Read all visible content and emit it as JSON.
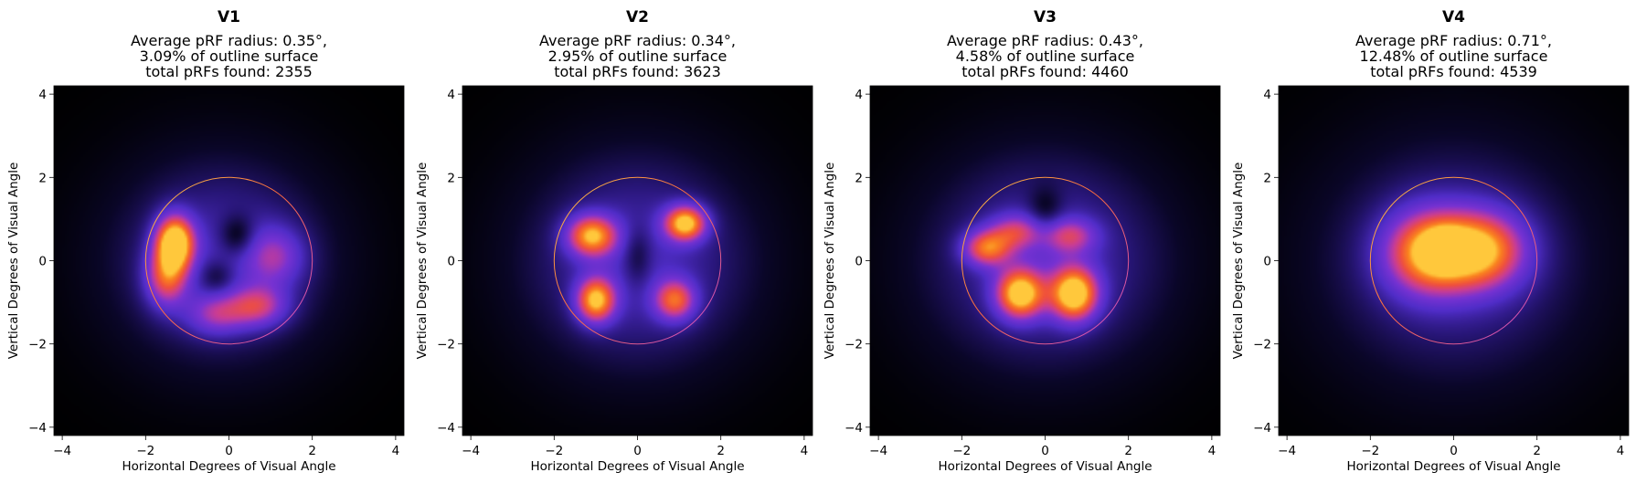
{
  "chart_data": [
    {
      "type": "heatmap",
      "title": "V1",
      "subtitle": [
        "Average pRF radius: 0.35°,",
        "3.09% of outline surface",
        "total pRFs found: 2355"
      ],
      "xlabel": "Horizontal Degrees of Visual Angle",
      "ylabel": "Vertical Degrees of Visual Angle",
      "xlim": [
        -4.2,
        4.2
      ],
      "ylim": [
        -4.2,
        4.2
      ],
      "xticks": [
        -4,
        -2,
        0,
        2,
        4
      ],
      "yticks": [
        -4,
        -2,
        0,
        2,
        4
      ],
      "outline_circle": {
        "cx": 0,
        "cy": 0,
        "r": 2
      },
      "average_prf_radius_deg": 0.35,
      "outline_surface_pct": 3.09,
      "total_prfs_found": 2355,
      "density_blobs": [
        {
          "x": -0.2,
          "y": 0.0,
          "sx": 1.8,
          "sy": 1.7,
          "w": 0.34
        },
        {
          "x": -1.3,
          "y": 0.45,
          "sx": 0.32,
          "sy": 0.45,
          "w": 0.95
        },
        {
          "x": -1.5,
          "y": -0.4,
          "sx": 0.35,
          "sy": 0.5,
          "w": 0.55
        },
        {
          "x": 0.7,
          "y": -1.1,
          "sx": 0.5,
          "sy": 0.35,
          "w": 0.45
        },
        {
          "x": 1.1,
          "y": 0.1,
          "sx": 0.5,
          "sy": 0.5,
          "w": 0.35
        },
        {
          "x": -0.3,
          "y": -1.3,
          "sx": 0.5,
          "sy": 0.35,
          "w": 0.35
        },
        {
          "x": 0.2,
          "y": 0.6,
          "sx": 0.3,
          "sy": 0.35,
          "w": -0.25
        },
        {
          "x": -0.3,
          "y": -0.4,
          "sx": 0.3,
          "sy": 0.3,
          "w": -0.2
        }
      ]
    },
    {
      "type": "heatmap",
      "title": "V2",
      "subtitle": [
        "Average pRF radius: 0.34°,",
        "2.95% of outline surface",
        "total pRFs found: 3623"
      ],
      "xlabel": "Horizontal Degrees of Visual Angle",
      "ylabel": "Vertical Degrees of Visual Angle",
      "xlim": [
        -4.2,
        4.2
      ],
      "ylim": [
        -4.2,
        4.2
      ],
      "xticks": [
        -4,
        -2,
        0,
        2,
        4
      ],
      "yticks": [
        -4,
        -2,
        0,
        2,
        4
      ],
      "outline_circle": {
        "cx": 0,
        "cy": 0,
        "r": 2
      },
      "average_prf_radius_deg": 0.34,
      "outline_surface_pct": 2.95,
      "total_prfs_found": 3623,
      "density_blobs": [
        {
          "x": 0.0,
          "y": 0.0,
          "sx": 1.9,
          "sy": 1.8,
          "w": 0.35
        },
        {
          "x": -1.1,
          "y": 0.6,
          "sx": 0.42,
          "sy": 0.35,
          "w": 0.75
        },
        {
          "x": 1.15,
          "y": 0.9,
          "sx": 0.35,
          "sy": 0.3,
          "w": 0.85
        },
        {
          "x": -1.0,
          "y": -0.95,
          "sx": 0.33,
          "sy": 0.38,
          "w": 0.8
        },
        {
          "x": 0.9,
          "y": -0.95,
          "sx": 0.35,
          "sy": 0.35,
          "w": 0.6
        },
        {
          "x": 0.0,
          "y": 0.1,
          "sx": 0.25,
          "sy": 0.5,
          "w": -0.2
        }
      ]
    },
    {
      "type": "heatmap",
      "title": "V3",
      "subtitle": [
        "Average pRF radius: 0.43°,",
        "4.58% of outline surface",
        "total pRFs found: 4460"
      ],
      "xlabel": "Horizontal Degrees of Visual Angle",
      "ylabel": "Vertical Degrees of Visual Angle",
      "xlim": [
        -4.2,
        4.2
      ],
      "ylim": [
        -4.2,
        4.2
      ],
      "xticks": [
        -4,
        -2,
        0,
        2,
        4
      ],
      "yticks": [
        -4,
        -2,
        0,
        2,
        4
      ],
      "outline_circle": {
        "cx": 0,
        "cy": 0,
        "r": 2
      },
      "average_prf_radius_deg": 0.43,
      "outline_surface_pct": 4.58,
      "total_prfs_found": 4460,
      "density_blobs": [
        {
          "x": 0.0,
          "y": 0.0,
          "sx": 2.0,
          "sy": 1.8,
          "w": 0.35
        },
        {
          "x": -1.4,
          "y": 0.3,
          "sx": 0.4,
          "sy": 0.3,
          "w": 0.6
        },
        {
          "x": -0.6,
          "y": -0.8,
          "sx": 0.4,
          "sy": 0.42,
          "w": 0.85
        },
        {
          "x": 0.7,
          "y": -0.8,
          "sx": 0.4,
          "sy": 0.45,
          "w": 0.9
        },
        {
          "x": 0.6,
          "y": 0.6,
          "sx": 0.45,
          "sy": 0.3,
          "w": 0.4
        },
        {
          "x": -0.7,
          "y": 0.7,
          "sx": 0.45,
          "sy": 0.3,
          "w": 0.4
        },
        {
          "x": 0.0,
          "y": 1.2,
          "sx": 0.3,
          "sy": 0.4,
          "w": -0.2
        }
      ]
    },
    {
      "type": "heatmap",
      "title": "V4",
      "subtitle": [
        "Average pRF radius: 0.71°,",
        "12.48% of outline surface",
        "total pRFs found: 4539"
      ],
      "xlabel": "Horizontal Degrees of Visual Angle",
      "ylabel": "Vertical Degrees of Visual Angle",
      "xlim": [
        -4.2,
        4.2
      ],
      "ylim": [
        -4.2,
        4.2
      ],
      "xticks": [
        -4,
        -2,
        0,
        2,
        4
      ],
      "yticks": [
        -4,
        -2,
        0,
        2,
        4
      ],
      "outline_circle": {
        "cx": 0,
        "cy": 0,
        "r": 2
      },
      "average_prf_radius_deg": 0.71,
      "outline_surface_pct": 12.48,
      "total_prfs_found": 4539,
      "density_blobs": [
        {
          "x": 0.0,
          "y": 0.0,
          "sx": 2.2,
          "sy": 2.0,
          "w": 0.3
        },
        {
          "x": -0.6,
          "y": 0.2,
          "sx": 0.75,
          "sy": 0.7,
          "w": 0.75
        },
        {
          "x": 0.7,
          "y": 0.25,
          "sx": 0.75,
          "sy": 0.65,
          "w": 0.7
        },
        {
          "x": -0.2,
          "y": 0.3,
          "sx": 0.3,
          "sy": 0.3,
          "w": 0.3
        }
      ]
    }
  ]
}
